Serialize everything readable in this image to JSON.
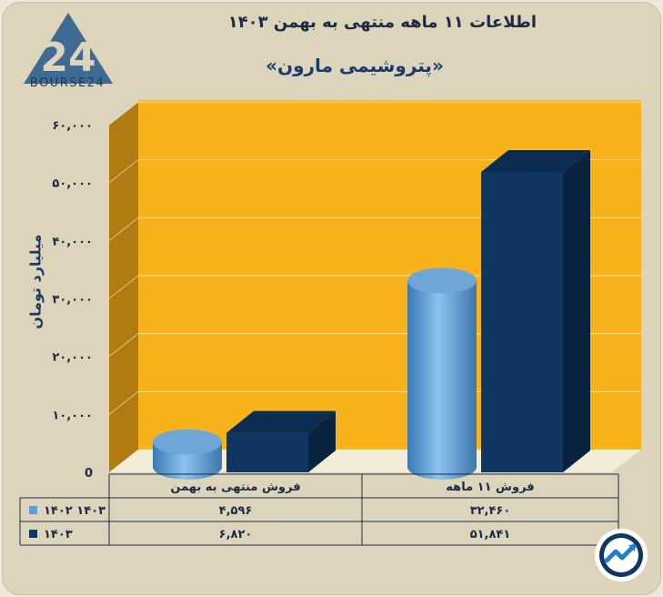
{
  "header": {
    "title": "اطلاعات ۱۱ ماهه منتهی به بهمن ۱۴۰۳",
    "subtitle": "«پتروشیمی مارون»",
    "logo_text": "BOURSE24"
  },
  "colors": {
    "background": "#ddd4bc",
    "plot_back": "#f7b21c",
    "plot_side": "#b07b10",
    "plot_floor": "#f2edd6",
    "series_1402": "#5f9fd6",
    "series_1403": "#0f3762"
  },
  "chart_data": {
    "type": "bar",
    "style": "3d",
    "categories": [
      "فروش منتهی به  بهمن",
      "فروش ۱۱ ماهه"
    ],
    "series": [
      {
        "name": "۱۴۰۲ ۱۴۰۳",
        "shape": "cylinder",
        "values": [
          4596,
          32460
        ],
        "value_labels": [
          "۴,۵۹۶",
          "۳۲,۴۶۰"
        ]
      },
      {
        "name": "۱۴۰۳",
        "shape": "box",
        "values": [
          6820,
          51841
        ],
        "value_labels": [
          "۶,۸۲۰",
          "۵۱,۸۴۱"
        ]
      }
    ],
    "ylabel": "میلیارد تومان",
    "ylim": [
      0,
      60000
    ],
    "yticks": [
      0,
      10000,
      20000,
      30000,
      40000,
      50000,
      60000
    ],
    "ytick_labels": [
      "0",
      "۱۰,۰۰۰",
      "۲۰,۰۰۰",
      "۳۰,۰۰۰",
      "۴۰,۰۰۰",
      "۵۰,۰۰۰",
      "۶۰,۰۰۰"
    ],
    "grid": true,
    "legend": "table-bottom"
  }
}
